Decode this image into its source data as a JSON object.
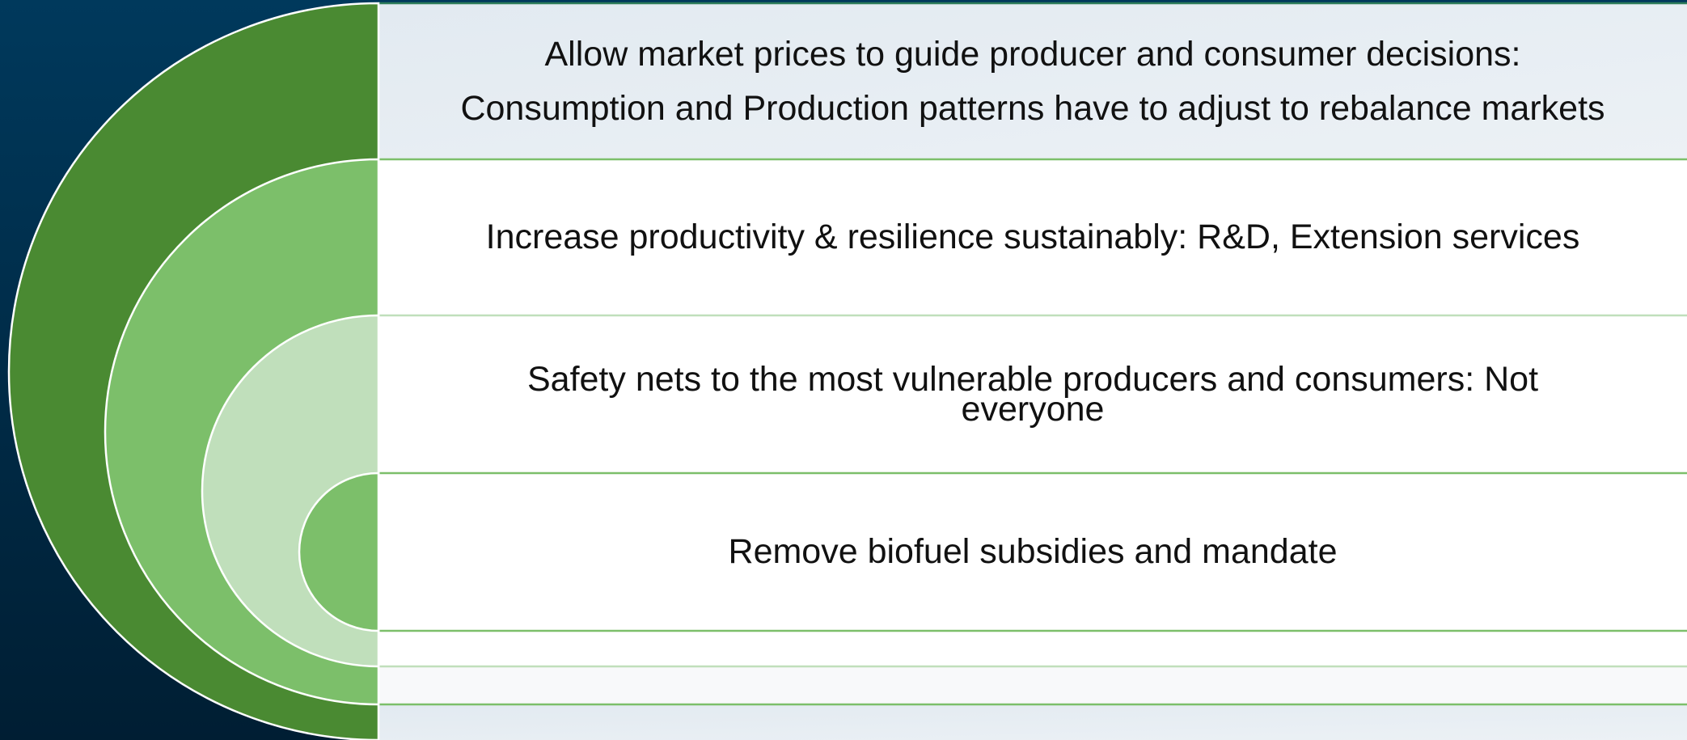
{
  "items": [
    {
      "lines": [
        "Allow market prices to guide producer and consumer decisions:",
        "Consumption and Production patterns have to adjust to rebalance markets"
      ]
    },
    {
      "lines": [
        "Increase productivity & resilience sustainably:  R&D, Extension services"
      ]
    },
    {
      "lines": [
        "Safety nets to the most vulnerable producers and consumers: Not",
        "everyone"
      ]
    },
    {
      "lines": [
        "Remove biofuel subsidies and mandate"
      ]
    }
  ]
}
